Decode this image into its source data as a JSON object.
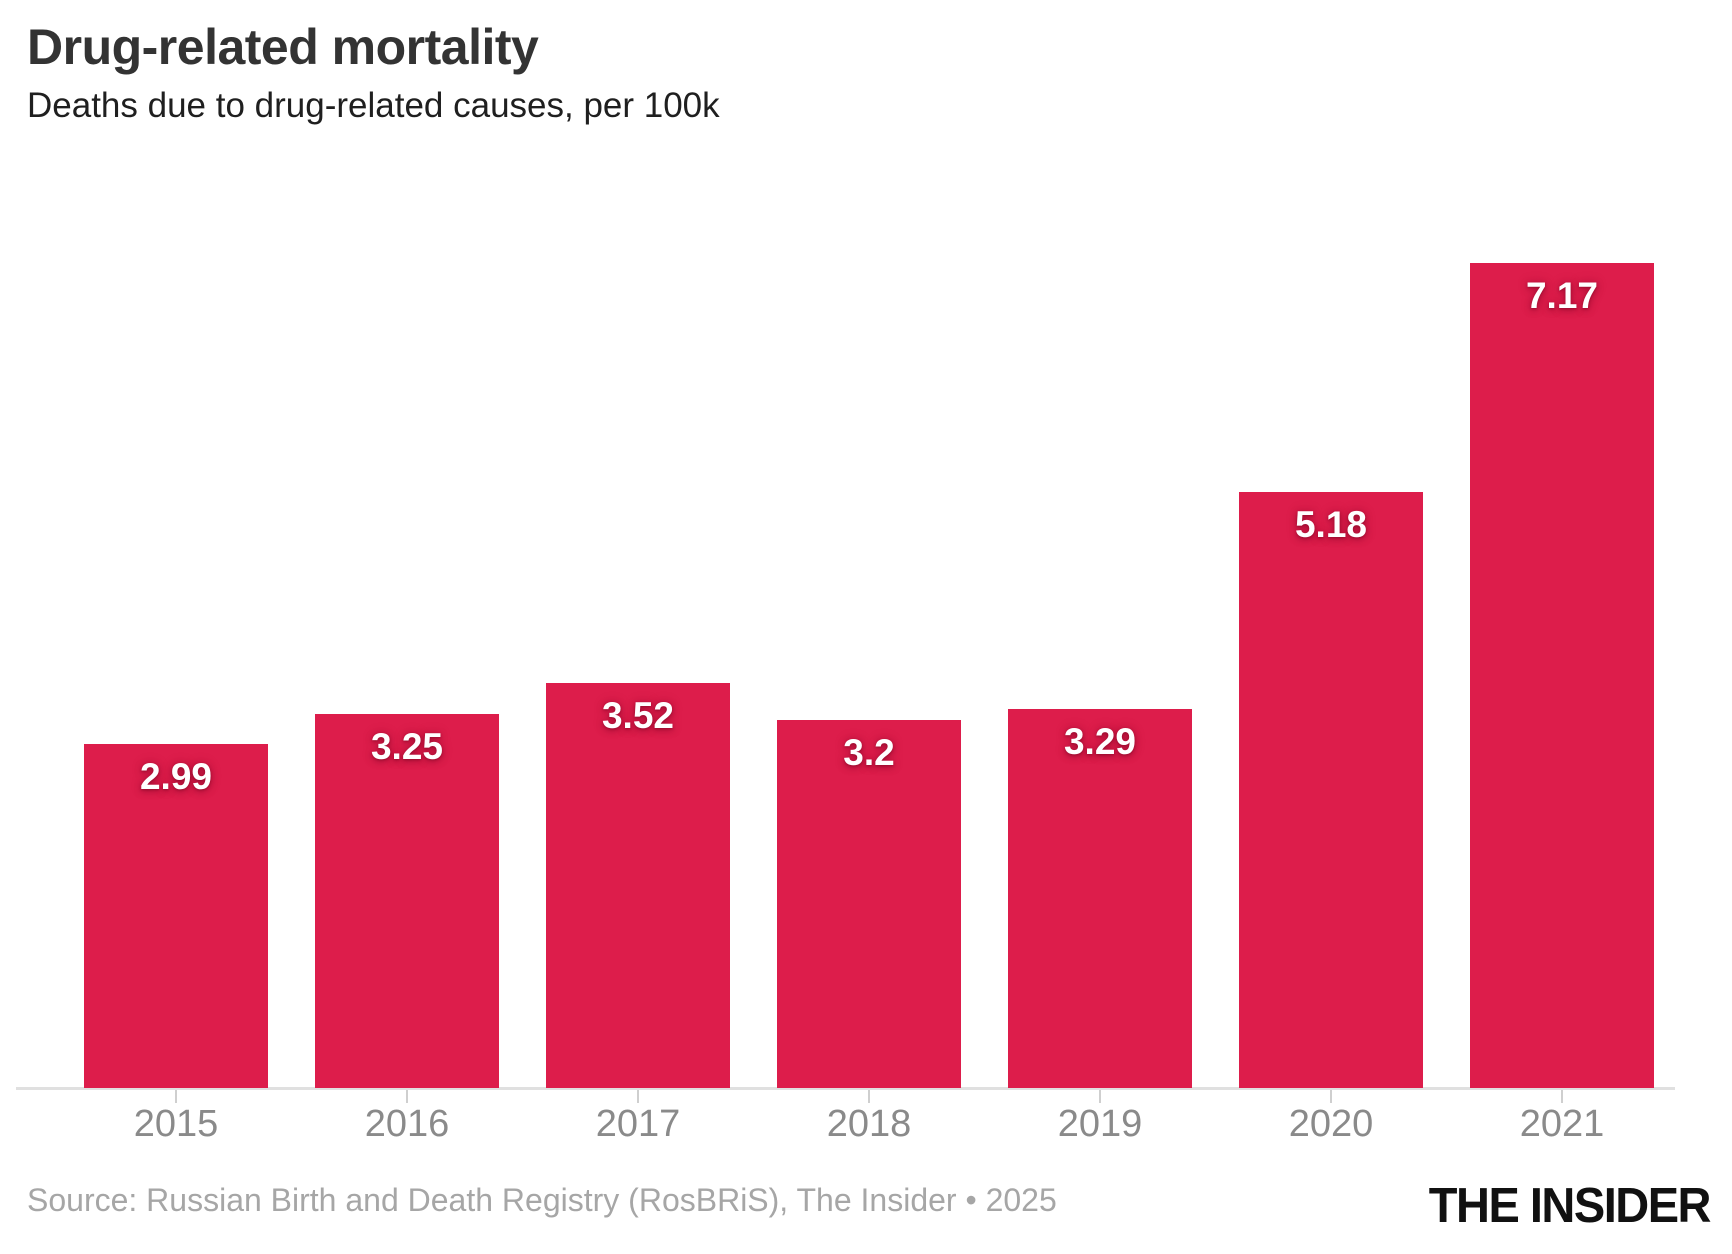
{
  "header": {
    "title": "Drug-related mortality",
    "subtitle": "Deaths due to drug-related causes, per 100k"
  },
  "chart_data": {
    "type": "bar",
    "title": "Drug-related mortality",
    "subtitle": "Deaths due to drug-related causes, per 100k",
    "categories": [
      "2015",
      "2016",
      "2017",
      "2018",
      "2019",
      "2020",
      "2021"
    ],
    "values": [
      2.99,
      3.25,
      3.52,
      3.2,
      3.29,
      5.18,
      7.17
    ],
    "value_labels": [
      "2.99",
      "3.25",
      "3.52",
      "3.2",
      "3.29",
      "5.18",
      "7.17"
    ],
    "xlabel": "",
    "ylabel": "",
    "ylim": [
      0,
      7.17
    ],
    "grid": false,
    "legend": false,
    "bar_color": "#DD1D4B",
    "value_label_color": "#FFFFFF",
    "axis_color": "#E0E0E0",
    "tick_color": "#CFCFCF",
    "tick_label_color": "#8A8A8A"
  },
  "footer": {
    "source": "Source: Russian Birth and Death Registry (RosBRiS), The Insider • 2025",
    "logo": "THE INSIDER"
  }
}
